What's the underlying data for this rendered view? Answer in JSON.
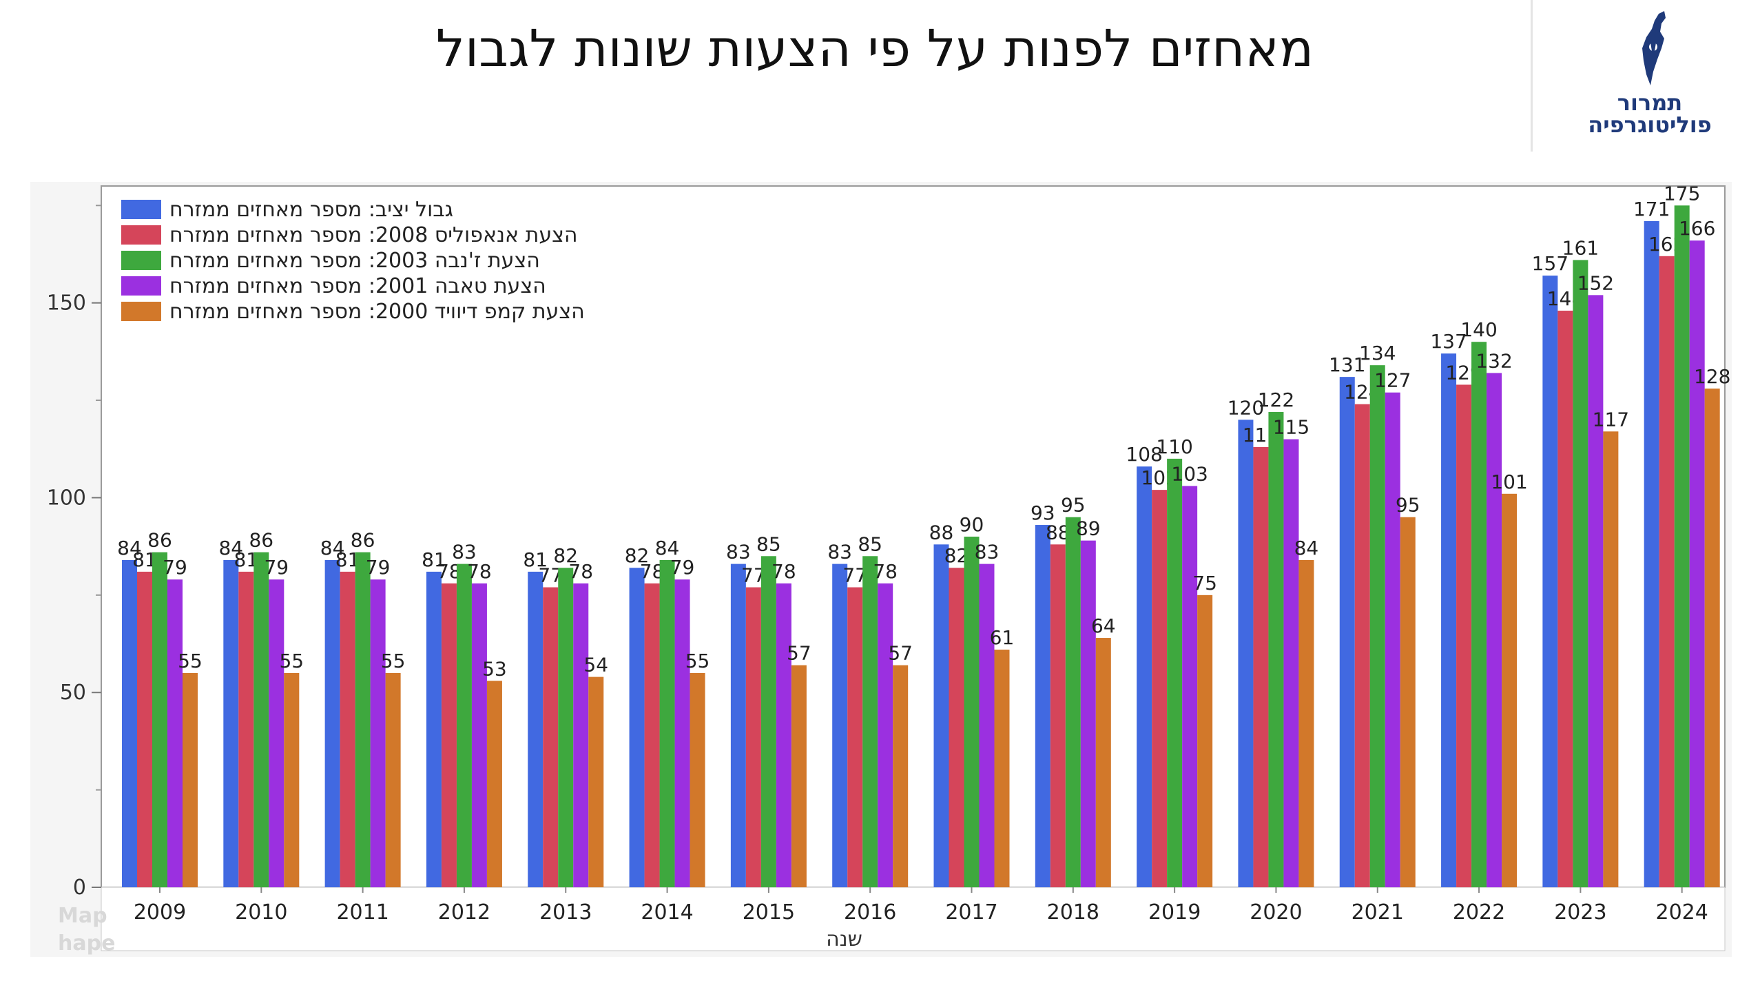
{
  "header": {
    "title": "מאחזים לפנות על פי הצעות שונות לגבול",
    "logo_line1": "תמרור",
    "logo_line2": "פוליטוגרפיה",
    "logo_icon": "israel-map-icon"
  },
  "ghost_labels": [
    "Map",
    "hape"
  ],
  "chart_data": {
    "type": "bar",
    "title": "מאחזים לפנות על פי הצעות שונות לגבול",
    "xlabel": "שנה",
    "ylabel": "",
    "ylim": [
      0,
      180
    ],
    "yticks": [
      0,
      50,
      100,
      150
    ],
    "grid": false,
    "legend_position": "top-left",
    "categories": [
      "2009",
      "2010",
      "2011",
      "2012",
      "2013",
      "2014",
      "2015",
      "2016",
      "2017",
      "2018",
      "2019",
      "2020",
      "2021",
      "2022",
      "2023",
      "2024"
    ],
    "series": [
      {
        "name": "גבול יציב: מספר מאחזים ממזרח",
        "color": "#4169e1",
        "values": [
          84,
          84,
          84,
          81,
          81,
          82,
          83,
          83,
          88,
          93,
          108,
          120,
          131,
          137,
          157,
          171
        ]
      },
      {
        "name": "הצעת אנאפוליס 2008: מספר מאחזים ממזרח",
        "color": "#d5455a",
        "values": [
          81,
          81,
          81,
          78,
          77,
          78,
          77,
          77,
          82,
          88,
          102,
          113,
          124,
          129,
          148,
          162
        ]
      },
      {
        "name": "הצעת ז'נבה 2003: מספר מאחזים ממזרח",
        "color": "#3ea83e",
        "values": [
          86,
          86,
          86,
          83,
          82,
          84,
          85,
          85,
          90,
          95,
          110,
          122,
          134,
          140,
          161,
          175
        ]
      },
      {
        "name": "הצעת טאבה 2001: מספר מאחזים ממזרח",
        "color": "#9b30e0",
        "values": [
          79,
          79,
          79,
          78,
          78,
          79,
          78,
          78,
          83,
          89,
          103,
          115,
          127,
          132,
          152,
          166
        ]
      },
      {
        "name": "הצעת קמפ דיוויד 2000: מספר מאחזים ממזרח",
        "color": "#d2782a",
        "values": [
          55,
          55,
          55,
          53,
          54,
          55,
          57,
          57,
          61,
          64,
          75,
          84,
          95,
          101,
          117,
          128
        ]
      }
    ]
  }
}
